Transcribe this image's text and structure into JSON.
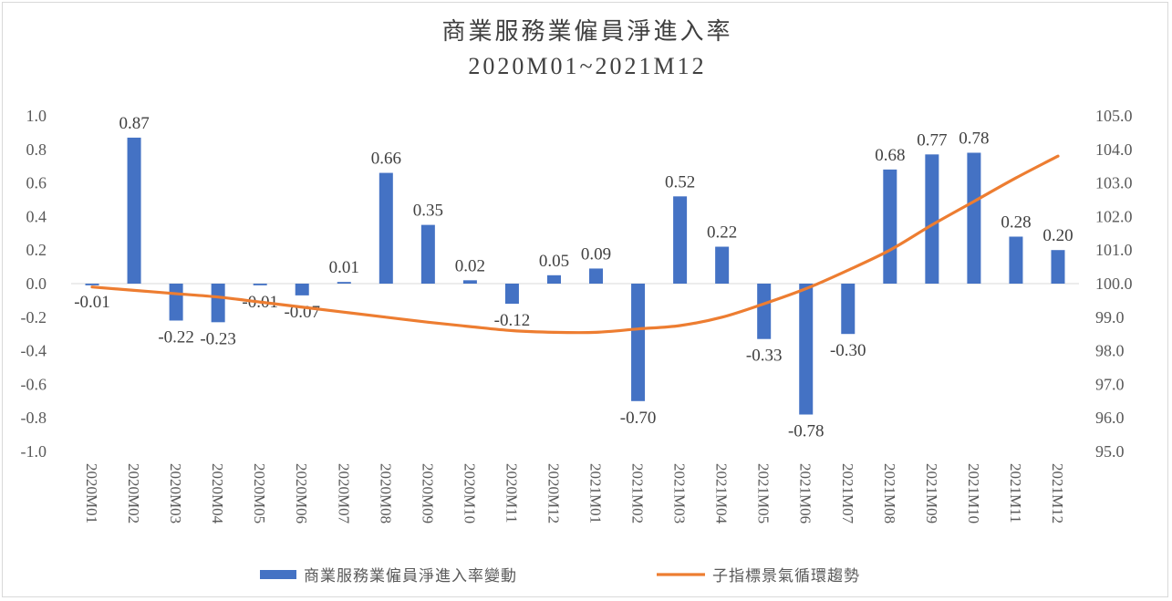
{
  "chart_data": {
    "type": "bar+line",
    "title": "商業服務業僱員淨進入率",
    "subtitle": "2020M01~2021M12",
    "categories": [
      "2020M01",
      "2020M02",
      "2020M03",
      "2020M04",
      "2020M05",
      "2020M06",
      "2020M07",
      "2020M08",
      "2020M09",
      "2020M10",
      "2020M11",
      "2020M12",
      "2021M01",
      "2021M02",
      "2021M03",
      "2021M04",
      "2021M05",
      "2021M06",
      "2021M07",
      "2021M08",
      "2021M09",
      "2021M10",
      "2021M11",
      "2021M12"
    ],
    "series": [
      {
        "name": "商業服務業僱員淨進入率變動",
        "type": "bar",
        "axis": "left",
        "color": "#4472C4",
        "values": [
          -0.01,
          0.87,
          -0.22,
          -0.23,
          -0.01,
          -0.07,
          0.01,
          0.66,
          0.35,
          0.02,
          -0.12,
          0.05,
          0.09,
          -0.7,
          0.52,
          0.22,
          -0.33,
          -0.78,
          -0.3,
          0.68,
          0.77,
          0.78,
          0.28,
          0.2
        ],
        "labels": [
          "-0.01",
          "0.87",
          "-0.22",
          "-0.23",
          "-0.01",
          "-0.07",
          "0.01",
          "0.66",
          "0.35",
          "0.02",
          "-0.12",
          "0.05",
          "0.09",
          "-0.70",
          "0.52",
          "0.22",
          "-0.33",
          "-0.78",
          "-0.30",
          "0.68",
          "0.77",
          "0.78",
          "0.28",
          "0.20"
        ]
      },
      {
        "name": "子指標景氣循環趨勢",
        "type": "line",
        "axis": "right",
        "color": "#ED7D31",
        "values": [
          99.9,
          99.8,
          99.7,
          99.6,
          99.45,
          99.3,
          99.15,
          99.0,
          98.85,
          98.72,
          98.6,
          98.55,
          98.55,
          98.65,
          98.75,
          99.0,
          99.4,
          99.85,
          100.4,
          101.0,
          101.75,
          102.45,
          103.15,
          103.8
        ]
      }
    ],
    "y_left": {
      "min": -1.0,
      "max": 1.0,
      "step": 0.2,
      "ticks": [
        "-1.0",
        "-0.8",
        "-0.6",
        "-0.4",
        "-0.2",
        "0.0",
        "0.2",
        "0.4",
        "0.6",
        "0.8",
        "1.0"
      ]
    },
    "y_right": {
      "min": 95.0,
      "max": 105.0,
      "step": 1.0,
      "ticks": [
        "95.0",
        "96.0",
        "97.0",
        "98.0",
        "99.0",
        "100.0",
        "101.0",
        "102.0",
        "103.0",
        "104.0",
        "105.0"
      ]
    },
    "legend_position": "bottom",
    "grid": false
  }
}
